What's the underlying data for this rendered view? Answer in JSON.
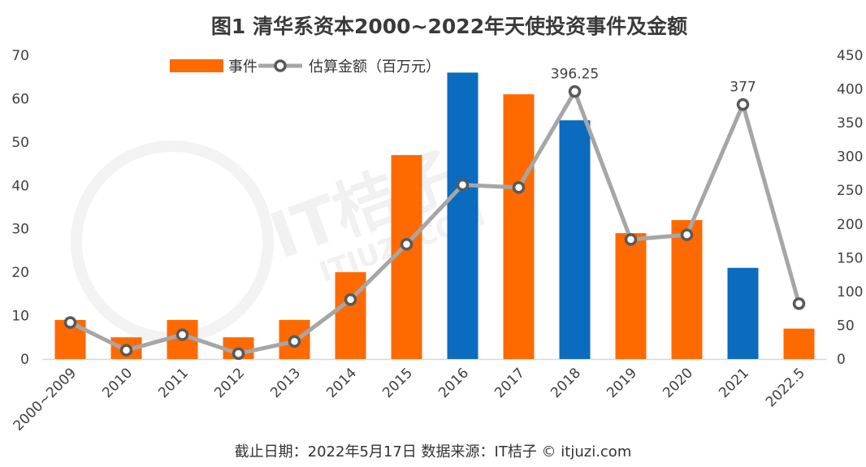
{
  "chart_data": {
    "type": "bar",
    "title": "图1  清华系资本2000~2022年天使投资事件及金额",
    "categories": [
      "2000~2009",
      "2010",
      "2011",
      "2012",
      "2013",
      "2014",
      "2015",
      "2016",
      "2017",
      "2018",
      "2019",
      "2020",
      "2021",
      "2022.5"
    ],
    "series": [
      {
        "name": "事件",
        "type": "bar",
        "axis": "left",
        "color": "#ff6a00",
        "highlight_color": "#0a6bbf",
        "highlighted_categories": [
          "2016",
          "2018",
          "2021"
        ],
        "values": [
          9,
          5,
          9,
          5,
          9,
          20,
          47,
          66,
          61,
          55,
          29,
          32,
          21,
          7
        ]
      },
      {
        "name": "估算金额（百万元）",
        "type": "line",
        "axis": "right",
        "color": "#a6a6a6",
        "marker_color": "#595959",
        "values": [
          54,
          13,
          36,
          8,
          26,
          88,
          170,
          258,
          254,
          396.25,
          177,
          184,
          377,
          82
        ],
        "data_labels": {
          "2018": "396.25",
          "2021": "377"
        }
      }
    ],
    "y_left": {
      "min": 0,
      "max": 70,
      "ticks": [
        0,
        10,
        20,
        30,
        40,
        50,
        60,
        70
      ]
    },
    "y_right": {
      "min": 0,
      "max": 450,
      "ticks": [
        0,
        50,
        100,
        150,
        200,
        250,
        300,
        350,
        400,
        450
      ]
    },
    "grid": false,
    "legend_position": "top-left",
    "source_note": "截止日期：2022年5月17日    数据来源：IT桔子 © itjuzi.com"
  },
  "watermark": {
    "main": "IT桔子",
    "sub": "ITJUZI.COM"
  }
}
